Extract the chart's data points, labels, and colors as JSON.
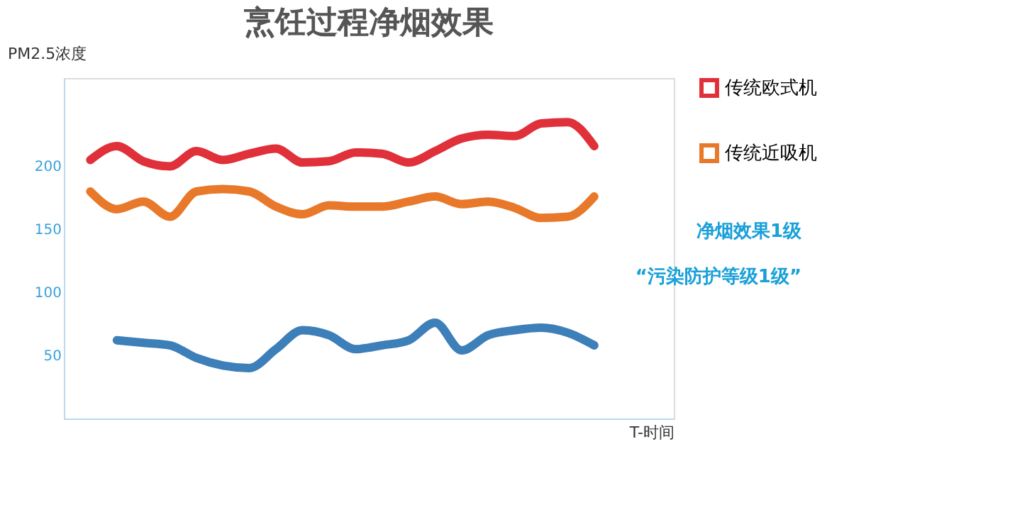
{
  "chart_data": {
    "type": "line",
    "title": "烹饪过程净烟效果",
    "xlabel": "T-时间",
    "ylabel": "PM2.5浓度",
    "categories": [
      null,
      null,
      null,
      null,
      null,
      null,
      null,
      null,
      null,
      null,
      null,
      null,
      null,
      null,
      null,
      null,
      null,
      null,
      null,
      null
    ],
    "series": [
      {
        "name": "传统欧式机",
        "color": "#e0303a",
        "values": [
          205,
          216,
          204,
          200,
          212,
          205,
          210,
          214,
          203,
          204,
          211,
          210,
          203,
          212,
          222,
          225,
          224,
          234,
          235,
          216
        ]
      },
      {
        "name": "传统近吸机",
        "color": "#e8782a",
        "values": [
          180,
          166,
          172,
          160,
          180,
          182,
          180,
          168,
          162,
          169,
          168,
          168,
          172,
          176,
          170,
          172,
          167,
          159,
          160,
          176
        ]
      },
      {
        "color": "#3d7fb8",
        "values": [
          null,
          62,
          60,
          58,
          48,
          42,
          40,
          55,
          70,
          66,
          55,
          58,
          62,
          76,
          54,
          66,
          70,
          72,
          68,
          58
        ]
      }
    ],
    "ylim": [
      0,
      270
    ],
    "yticks": [
      50,
      100,
      150,
      200
    ],
    "tick_labels": "y",
    "grid": false,
    "legend": "right",
    "marker": "none",
    "line_style": "solid",
    "annotations": [
      "净烟效果1级",
      "“污染防护等级1级”"
    ]
  }
}
